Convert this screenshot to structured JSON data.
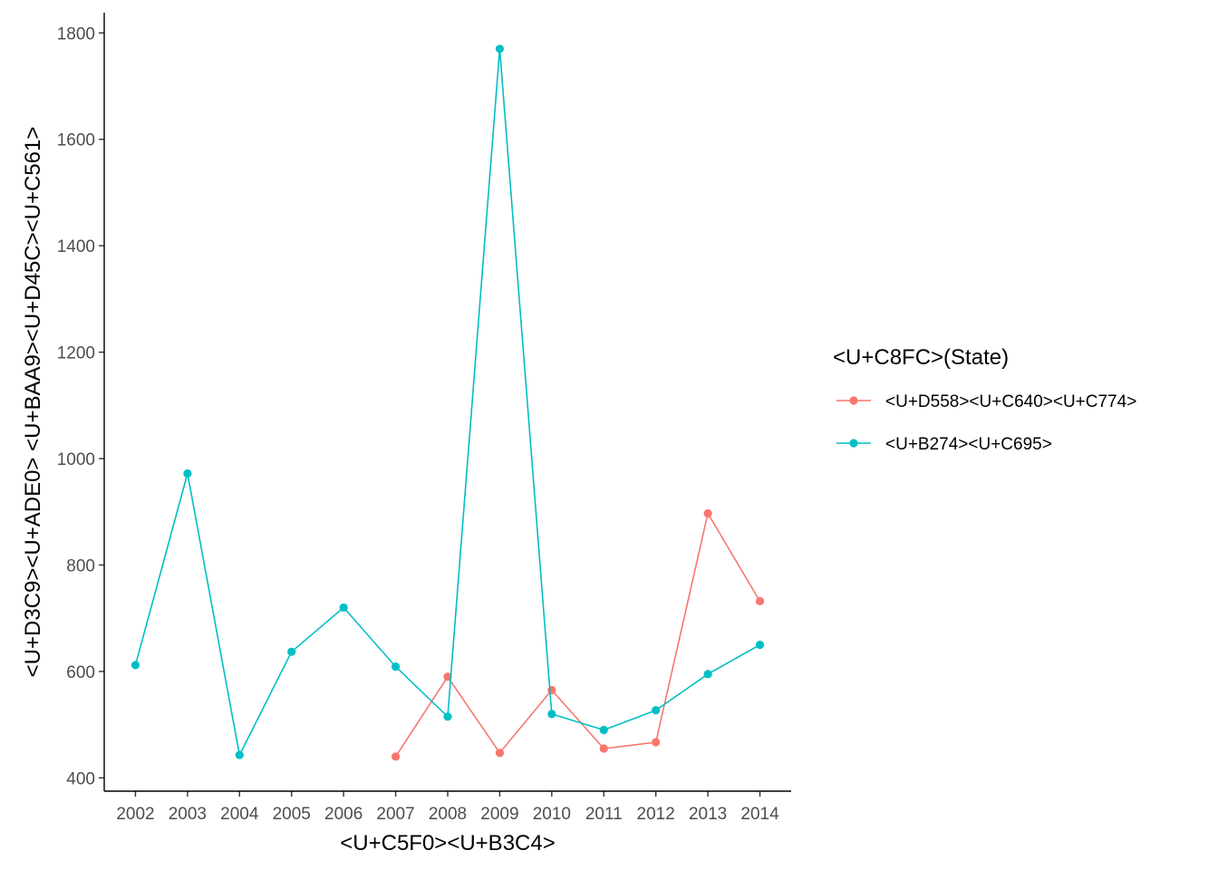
{
  "chart_data": {
    "type": "line",
    "xlabel": "<U+C5F0><U+B3C4>",
    "ylabel": "<U+D3C9><U+ADE0> <U+BAA9><U+D45C><U+C561>",
    "x": [
      2002,
      2003,
      2004,
      2005,
      2006,
      2007,
      2008,
      2009,
      2010,
      2011,
      2012,
      2013,
      2014
    ],
    "xticks": [
      "2002",
      "2003",
      "2004",
      "2005",
      "2006",
      "2007",
      "2008",
      "2009",
      "2010",
      "2011",
      "2012",
      "2013",
      "2014"
    ],
    "yticks": [
      "400",
      "600",
      "800",
      "1000",
      "1200",
      "1400",
      "1600",
      "1800"
    ],
    "yticks_values": [
      400,
      600,
      800,
      1000,
      1200,
      1400,
      1600,
      1800
    ],
    "ylim": [
      375,
      1838
    ],
    "xlim": [
      2001.4,
      2014.6
    ],
    "grid": false,
    "legend": {
      "title": "<U+C8FC>(State)",
      "position": "right"
    },
    "series": [
      {
        "name": "<U+D558><U+C640><U+C774>",
        "color": "#F8766D",
        "x": [
          2007,
          2008,
          2009,
          2010,
          2011,
          2012,
          2013,
          2014
        ],
        "values": [
          440,
          590,
          447,
          565,
          455,
          467,
          897,
          732
        ]
      },
      {
        "name": "<U+B274><U+C695>",
        "color": "#00BFC4",
        "x": [
          2002,
          2003,
          2004,
          2005,
          2006,
          2007,
          2008,
          2009,
          2010,
          2011,
          2012,
          2013,
          2014
        ],
        "values": [
          612,
          972,
          443,
          637,
          720,
          609,
          515,
          1770,
          520,
          490,
          527,
          595,
          650
        ]
      }
    ]
  }
}
